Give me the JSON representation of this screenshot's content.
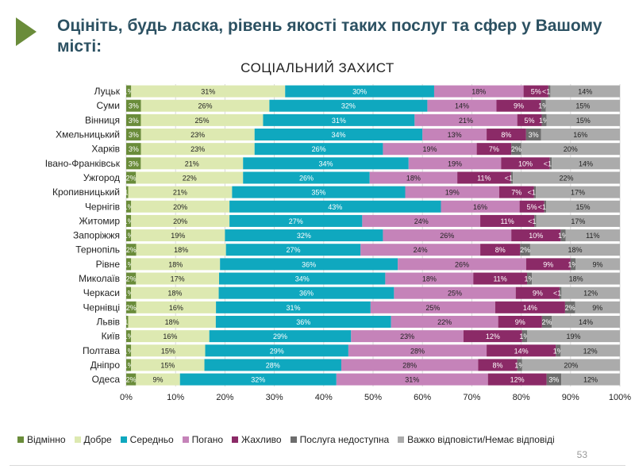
{
  "slide": {
    "title": "Оцініть, будь ласка, рівень якості таких послуг та сфер у Вашому місті:",
    "page_number": "53"
  },
  "colors": {
    "title": "#2c5162",
    "accent_arrow": "#6a8c3a"
  },
  "chart_data": {
    "type": "bar",
    "orientation": "horizontal",
    "stacked": true,
    "title": "СОЦІАЛЬНИЙ ЗАХИСТ",
    "xlim": [
      0,
      100
    ],
    "x_ticks": [
      "0%",
      "10%",
      "20%",
      "30%",
      "40%",
      "50%",
      "60%",
      "70%",
      "80%",
      "90%",
      "100%"
    ],
    "grid": "vertical",
    "legend_position": "bottom",
    "categories": [
      "Луцьк",
      "Суми",
      "Вінниця",
      "Хмельницький",
      "Харків",
      "Івано-Франківськ",
      "Ужгород",
      "Кропивницький",
      "Чернігів",
      "Житомир",
      "Запоріжжя",
      "Тернопіль",
      "Рівне",
      "Миколаїв",
      "Черкаси",
      "Чернівці",
      "Львів",
      "Київ",
      "Полтава",
      "Дніпро",
      "Одеса"
    ],
    "series": [
      {
        "name": "Відмінно",
        "color": "#6a8c3a",
        "values": [
          1,
          3,
          3,
          3,
          3,
          3,
          2,
          0.4,
          1,
          1,
          1,
          2,
          1,
          2,
          1,
          2,
          0.4,
          1,
          1,
          1,
          2
        ],
        "labels": [
          "1%",
          "3%",
          "3%",
          "3%",
          "3%",
          "3%",
          "2%",
          "<1%",
          "1%",
          "1%",
          "1%",
          "2%",
          "1%",
          "2%",
          "1%",
          "2%",
          "<1%",
          "1%",
          "1%",
          "1%",
          "2%"
        ]
      },
      {
        "name": "Добре",
        "color": "#dde9b1",
        "values": [
          31,
          26,
          25,
          23,
          23,
          21,
          22,
          21,
          20,
          20,
          19,
          18,
          18,
          17,
          18,
          16,
          18,
          16,
          15,
          15,
          9
        ],
        "labels": [
          "31%",
          "26%",
          "25%",
          "23%",
          "23%",
          "21%",
          "22%",
          "21%",
          "20%",
          "20%",
          "19%",
          "18%",
          "18%",
          "17%",
          "18%",
          "16%",
          "18%",
          "16%",
          "15%",
          "15%",
          "9%"
        ]
      },
      {
        "name": "Середньо",
        "color": "#0fa8bf",
        "values": [
          30,
          32,
          31,
          34,
          26,
          34,
          26,
          35,
          43,
          27,
          32,
          27,
          36,
          34,
          36,
          31,
          36,
          29,
          29,
          28,
          32
        ],
        "labels": [
          "30%",
          "32%",
          "31%",
          "34%",
          "26%",
          "34%",
          "26%",
          "35%",
          "43%",
          "27%",
          "32%",
          "27%",
          "36%",
          "34%",
          "36%",
          "31%",
          "36%",
          "29%",
          "29%",
          "28%",
          "32%"
        ]
      },
      {
        "name": "Погано",
        "color": "#c583b9",
        "values": [
          18,
          14,
          21,
          13,
          19,
          19,
          18,
          19,
          16,
          24,
          26,
          24,
          26,
          18,
          25,
          25,
          22,
          23,
          28,
          28,
          31
        ],
        "labels": [
          "18%",
          "14%",
          "21%",
          "13%",
          "19%",
          "19%",
          "18%",
          "19%",
          "16%",
          "24%",
          "26%",
          "24%",
          "26%",
          "18%",
          "25%",
          "25%",
          "22%",
          "23%",
          "28%",
          "28%",
          "31%"
        ]
      },
      {
        "name": "Жахливо",
        "color": "#8b2a67",
        "values": [
          5,
          9,
          5,
          8,
          7,
          10,
          11,
          7,
          5,
          11,
          10,
          8,
          9,
          11,
          9,
          14,
          9,
          12,
          14,
          8,
          12
        ],
        "labels": [
          "5%",
          "9%",
          "5%",
          "8%",
          "7%",
          "10%",
          "11%",
          "7%",
          "5%",
          "11%",
          "10%",
          "8%",
          "9%",
          "11%",
          "9%",
          "14%",
          "9%",
          "12%",
          "14%",
          "8%",
          "12%"
        ]
      },
      {
        "name": "Послуга недоступна",
        "color": "#6d6d6d",
        "values": [
          0.4,
          1,
          1,
          3,
          2,
          0.4,
          0.4,
          0.4,
          0.4,
          0.4,
          1,
          2,
          1,
          1,
          0.4,
          2,
          2,
          1,
          1,
          1,
          3
        ],
        "labels": [
          "<1%",
          "1%",
          "1%",
          "3%",
          "2%",
          "<1%",
          "<1%",
          "<1%",
          "<1%",
          "<1%",
          "1%",
          "2%",
          "1%",
          "1%",
          "<1%",
          "2%",
          "2%",
          "1%",
          "1%",
          "1%",
          "3%"
        ]
      },
      {
        "name": "Важко відповісти/Немає відповіді",
        "color": "#ababab",
        "values": [
          14,
          15,
          15,
          16,
          20,
          14,
          22,
          17,
          15,
          17,
          11,
          18,
          9,
          18,
          12,
          9,
          14,
          19,
          12,
          20,
          12
        ],
        "labels": [
          "14%",
          "15%",
          "15%",
          "16%",
          "20%",
          "14%",
          "22%",
          "17%",
          "15%",
          "17%",
          "11%",
          "18%",
          "9%",
          "18%",
          "12%",
          "9%",
          "14%",
          "19%",
          "12%",
          "20%",
          "12%"
        ]
      }
    ]
  }
}
